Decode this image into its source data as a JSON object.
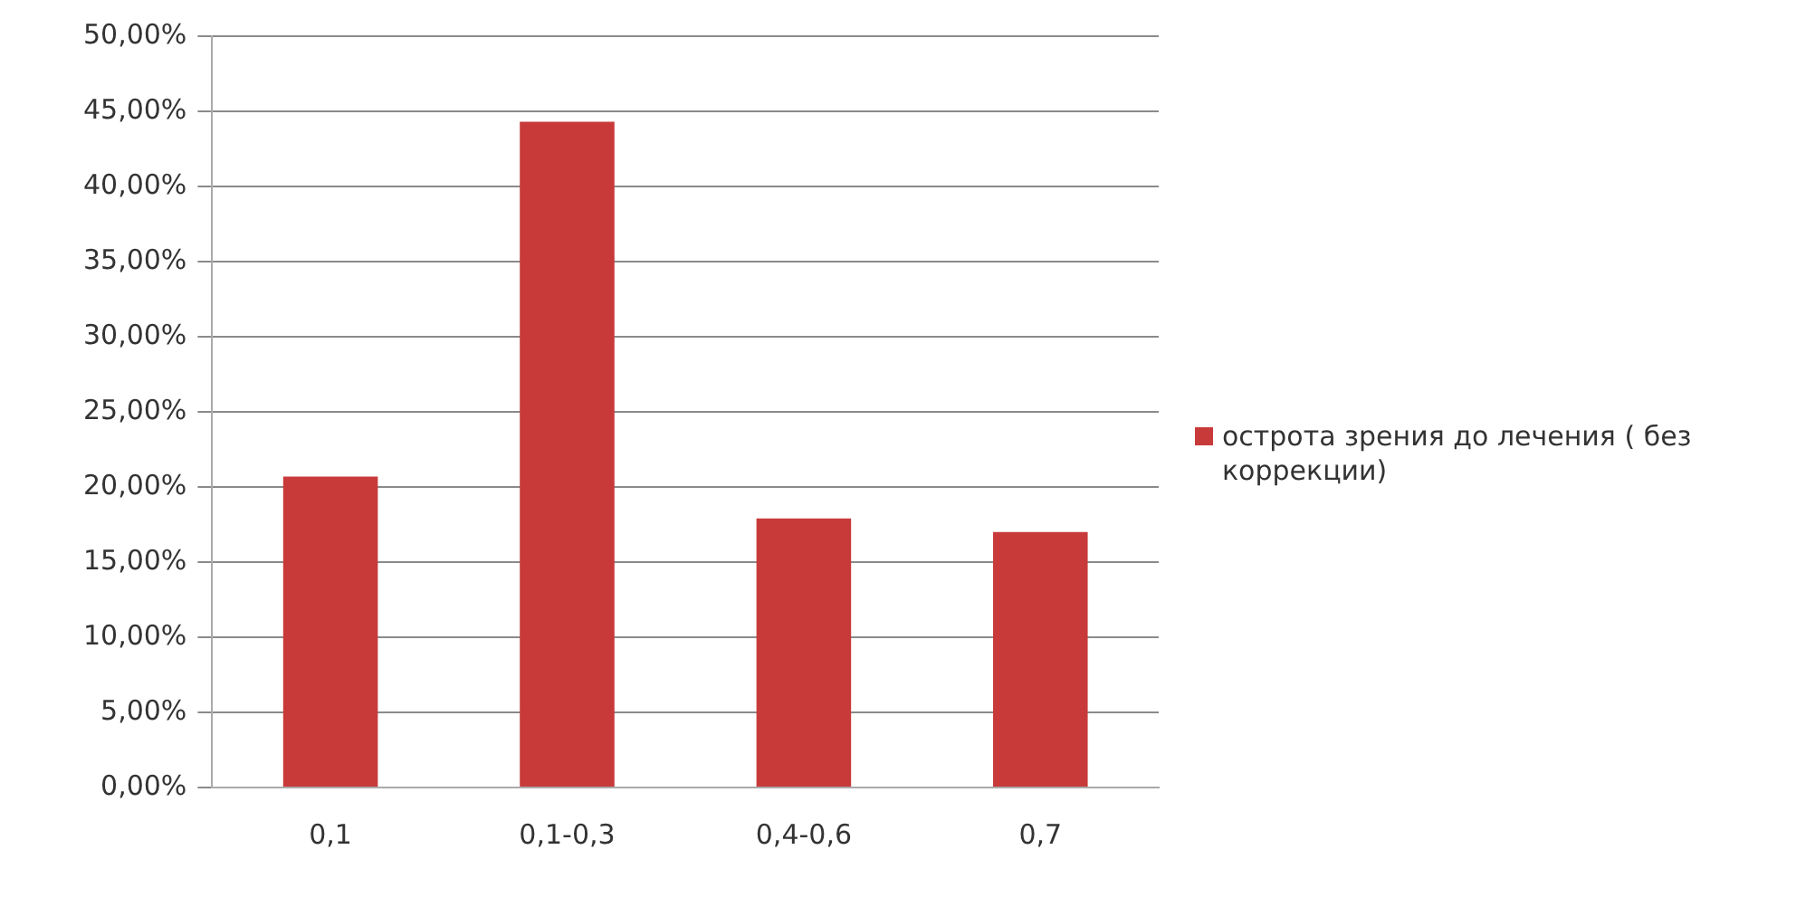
{
  "chart_data": {
    "type": "bar",
    "categories": [
      "0,1",
      "0,1-0,3",
      "0,4-0,6",
      "0,7"
    ],
    "series": [
      {
        "name": "острота зрения до лечения ( без коррекции)",
        "color": "#c83a3a",
        "values": [
          20.7,
          44.3,
          17.9,
          17.0
        ]
      }
    ],
    "ylim": [
      0,
      50
    ],
    "yticks": [
      {
        "value": 0,
        "label": "0,00%"
      },
      {
        "value": 5,
        "label": "5,00%"
      },
      {
        "value": 10,
        "label": "10,00%"
      },
      {
        "value": 15,
        "label": "15,00%"
      },
      {
        "value": 20,
        "label": "20,00%"
      },
      {
        "value": 25,
        "label": "25,00%"
      },
      {
        "value": 30,
        "label": "30,00%"
      },
      {
        "value": 35,
        "label": "35,00%"
      },
      {
        "value": 40,
        "label": "40,00%"
      },
      {
        "value": 45,
        "label": "45,00%"
      },
      {
        "value": 50,
        "label": "50,00%"
      }
    ],
    "grid": "y",
    "legend": "right"
  }
}
